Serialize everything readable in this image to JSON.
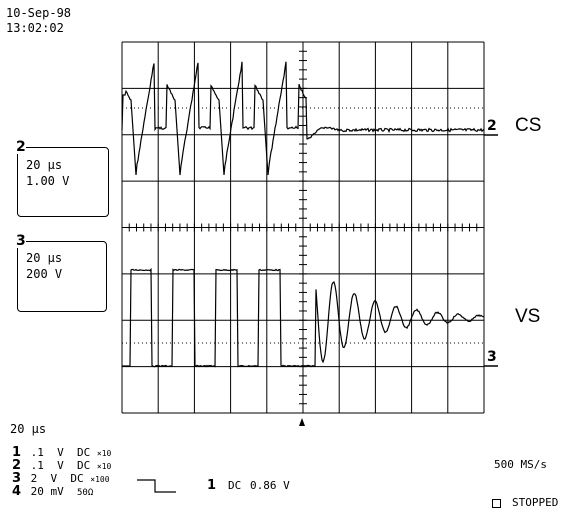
{
  "header": {
    "date": "10-Sep-98",
    "time": "13:02:02"
  },
  "channel_boxes": [
    {
      "number": "2",
      "timebase": "20 µs",
      "scale": "1.00 V"
    },
    {
      "number": "3",
      "timebase": "20 µs",
      "scale": "200 V"
    }
  ],
  "trace_labels": {
    "upper": "CS",
    "lower": "VS"
  },
  "trace_markers": {
    "upper": "2",
    "lower": "3"
  },
  "bottom": {
    "timebase": "20 µs",
    "sample_rate": "500 MS/s",
    "status": "STOPPED",
    "channels": [
      {
        "num": "1",
        "volts": ".1",
        "unit": "V",
        "coupling": "DC",
        "probe": "×10"
      },
      {
        "num": "2",
        "volts": ".1",
        "unit": "V",
        "coupling": "DC",
        "probe": "×10"
      },
      {
        "num": "3",
        "volts": "2",
        "unit": "V",
        "coupling": "DC",
        "probe": "×100"
      },
      {
        "num": "4",
        "volts": "20",
        "unit": "mV",
        "coupling": "50Ω",
        "probe": ""
      }
    ],
    "trigger": {
      "source": "1",
      "coupling": "DC",
      "level": "0.86 V"
    }
  }
}
